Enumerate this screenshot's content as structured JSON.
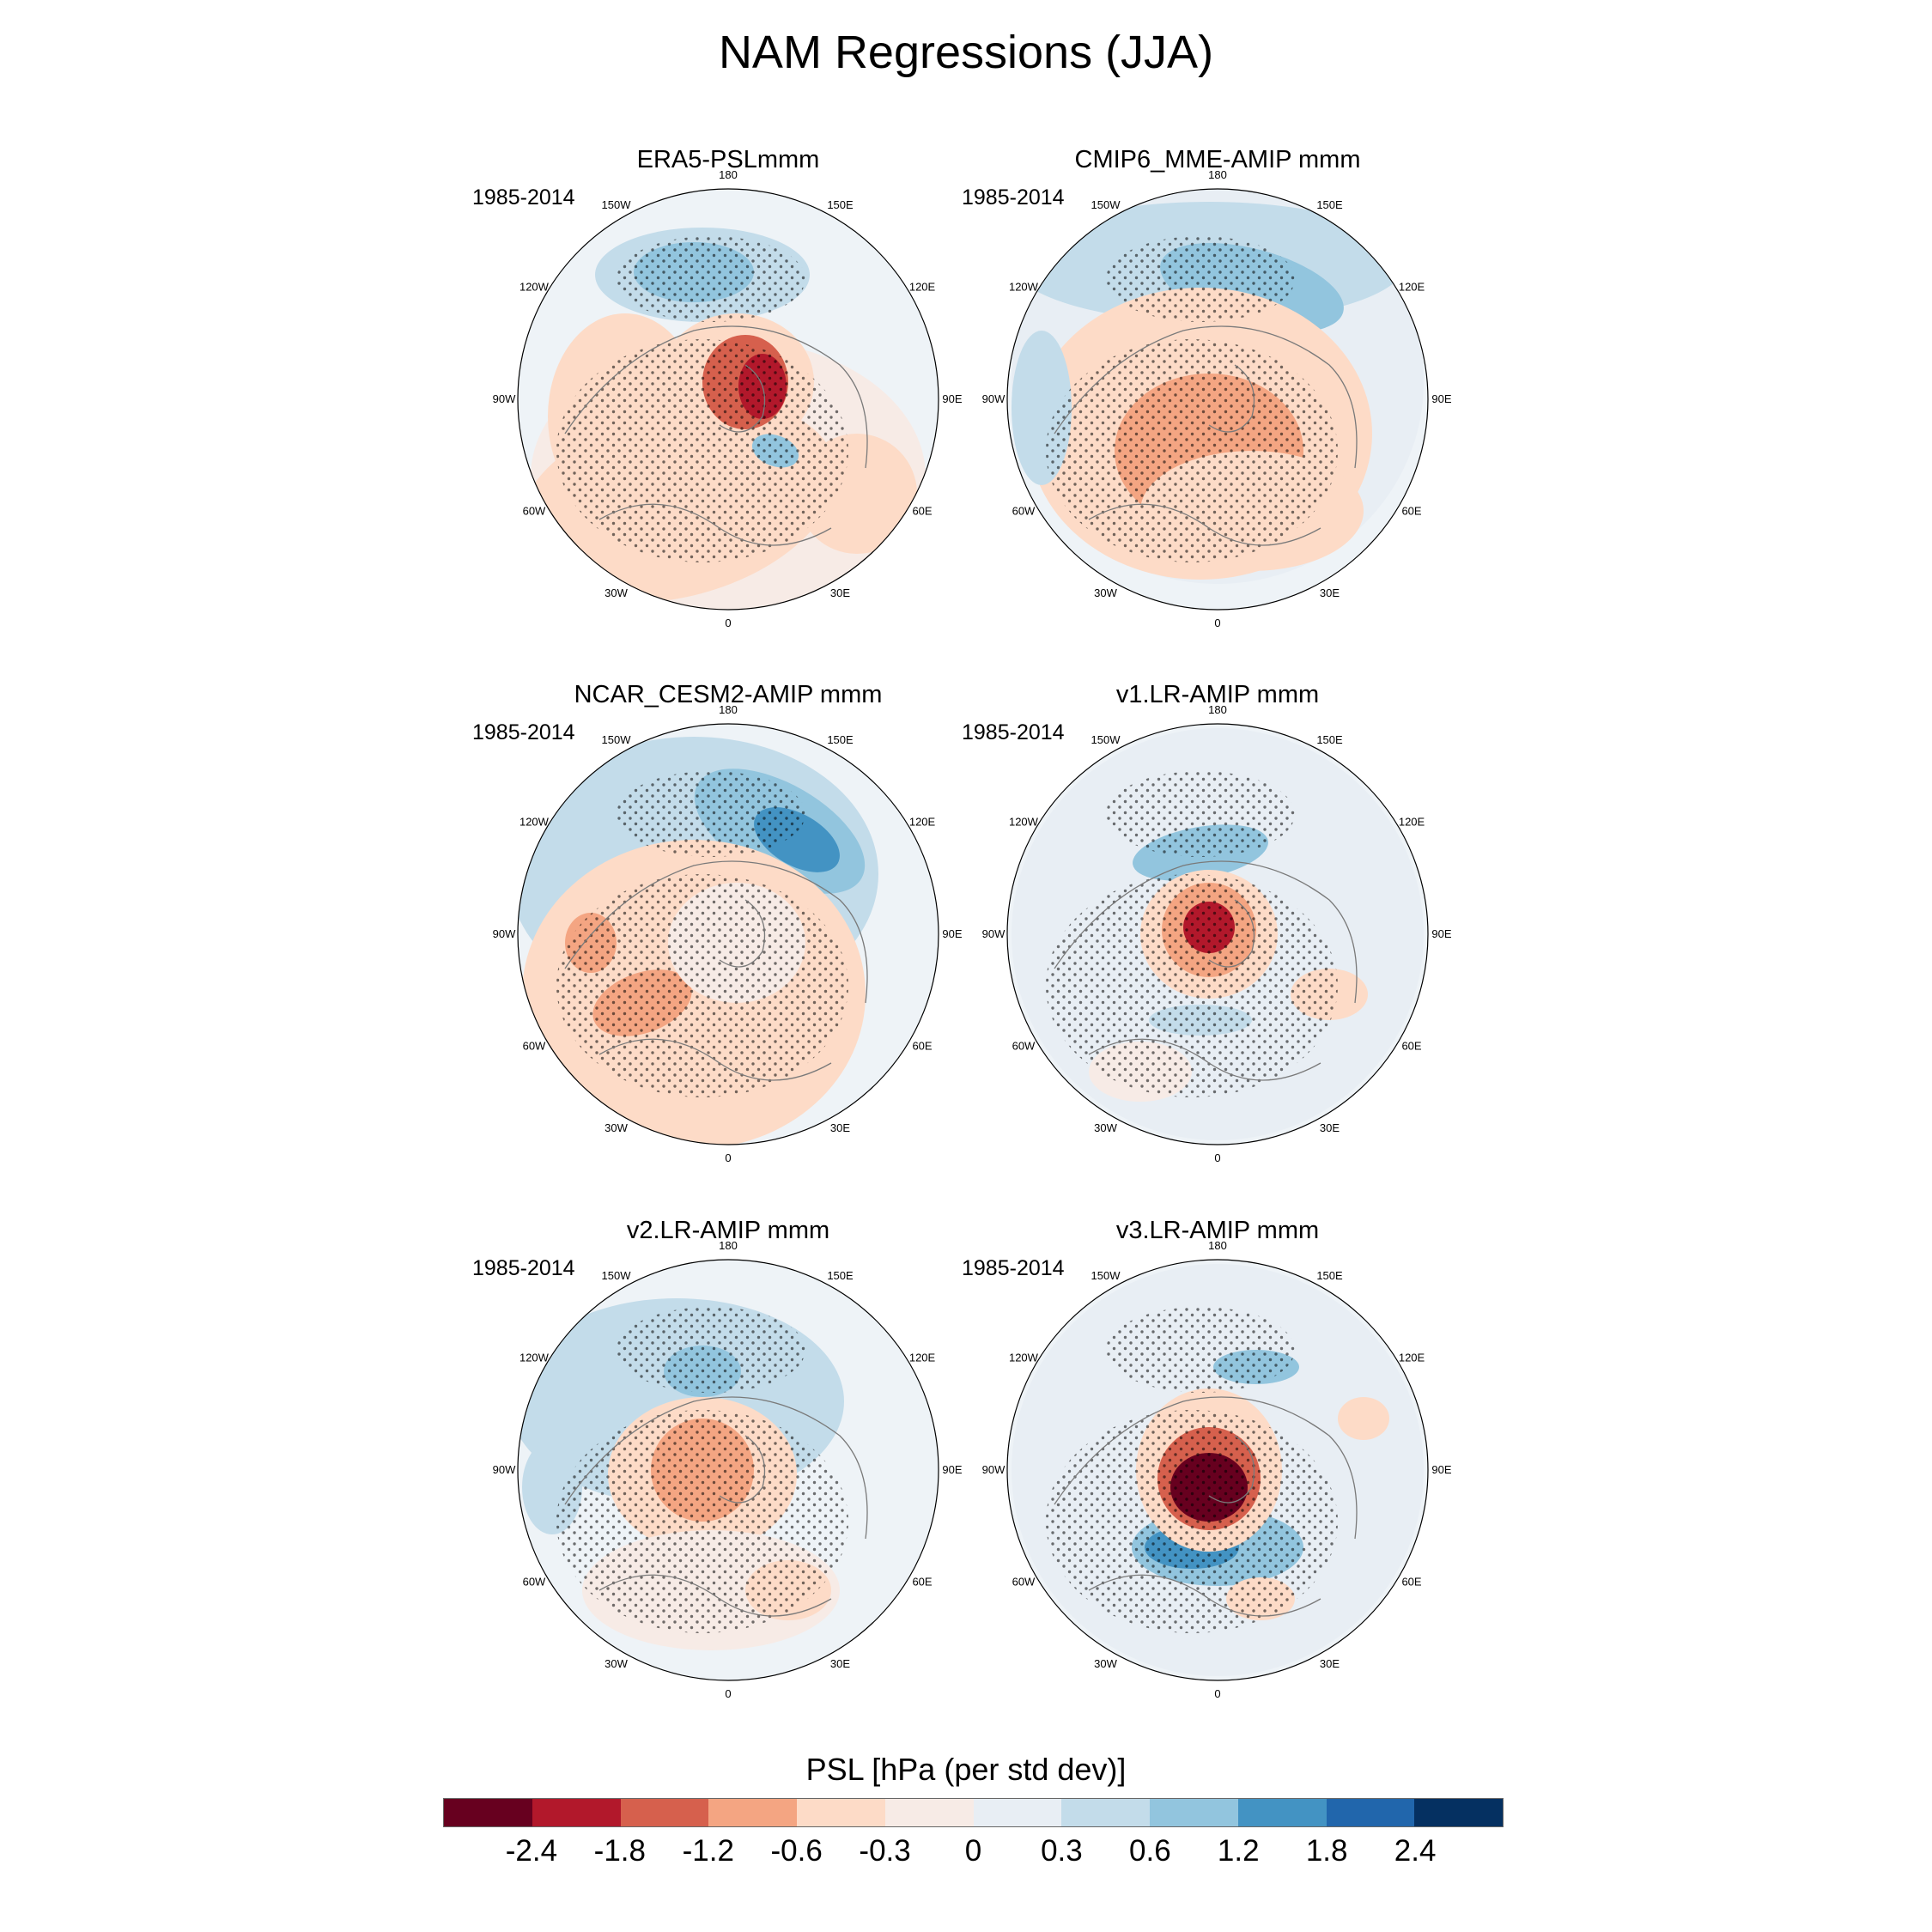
{
  "title": "NAM Regressions (JJA)",
  "panels": [
    {
      "title": "ERA5-PSLmmm",
      "period": "1985-2014"
    },
    {
      "title": "CMIP6_MME-AMIP  mmm",
      "period": "1985-2014"
    },
    {
      "title": "NCAR_CESM2-AMIP  mmm",
      "period": "1985-2014"
    },
    {
      "title": "v1.LR-AMIP  mmm",
      "period": "1985-2014"
    },
    {
      "title": "v2.LR-AMIP  mmm",
      "period": "1985-2014"
    },
    {
      "title": "v3.LR-AMIP  mmm",
      "period": "1985-2014"
    }
  ],
  "longitude_labels": [
    "180",
    "150E",
    "120E",
    "90E",
    "60E",
    "30E",
    "0",
    "30W",
    "60W",
    "90W",
    "120W",
    "150W"
  ],
  "colorbar": {
    "title": "PSL [hPa (per std dev)]",
    "ticks": [
      "-2.4",
      "-1.8",
      "-1.2",
      "-0.6",
      "-0.3",
      "0",
      "0.3",
      "0.6",
      "1.2",
      "1.8",
      "2.4"
    ],
    "colors": [
      "#67001f",
      "#b2182b",
      "#d6604d",
      "#f4a582",
      "#fddbc7",
      "#f7ebe6",
      "#e8eef4",
      "#c3dcea",
      "#92c5de",
      "#4393c3",
      "#2166ac",
      "#053061"
    ]
  }
}
